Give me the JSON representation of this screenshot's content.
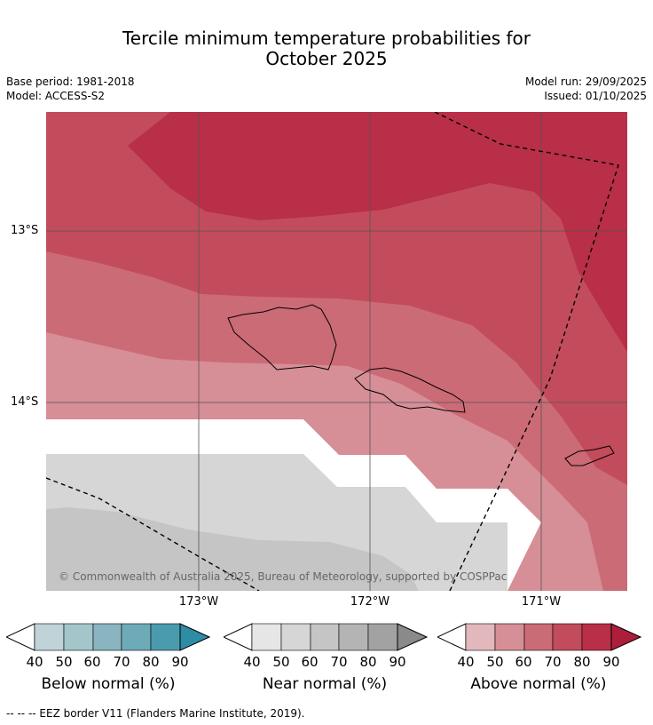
{
  "title_line1": "Tercile minimum temperature probabilities for",
  "title_line2": "October 2025",
  "meta_left": {
    "base_period": "Base period: 1981-2018",
    "model": "Model: ACCESS-S2"
  },
  "meta_right": {
    "model_run": "Model run: 29/09/2025",
    "issued": "Issued: 01/10/2025"
  },
  "map": {
    "lat_labels": [
      "13°S",
      "14°S"
    ],
    "lon_labels": [
      "173°W",
      "172°W",
      "171°W"
    ],
    "copyright": "© Commonwealth of Australia 2025, Bureau of Meteorology, supported by COSPPac"
  },
  "legends": [
    {
      "title": "Below normal (%)",
      "ticks": [
        "40",
        "50",
        "60",
        "70",
        "80",
        "90"
      ],
      "colors": [
        "#bfd3d8",
        "#a4c6cb",
        "#88b5c0",
        "#6eabb9",
        "#4b9baf",
        "#2e8ca5"
      ]
    },
    {
      "title": "Near normal (%)",
      "ticks": [
        "40",
        "50",
        "60",
        "70",
        "80",
        "90"
      ],
      "colors": [
        "#e6e6e6",
        "#d6d6d6",
        "#c5c5c5",
        "#b4b4b4",
        "#a2a2a2",
        "#8a8a8a"
      ]
    },
    {
      "title": "Above normal (%)",
      "ticks": [
        "40",
        "50",
        "60",
        "70",
        "80",
        "90"
      ],
      "colors": [
        "#e2b8bd",
        "#d68e97",
        "#cb6b76",
        "#c24c5b",
        "#b92f48",
        "#ad1e3c"
      ]
    }
  ],
  "footnote": "--  --  -- EEZ border V11 (Flanders Marine Institute, 2019)."
}
